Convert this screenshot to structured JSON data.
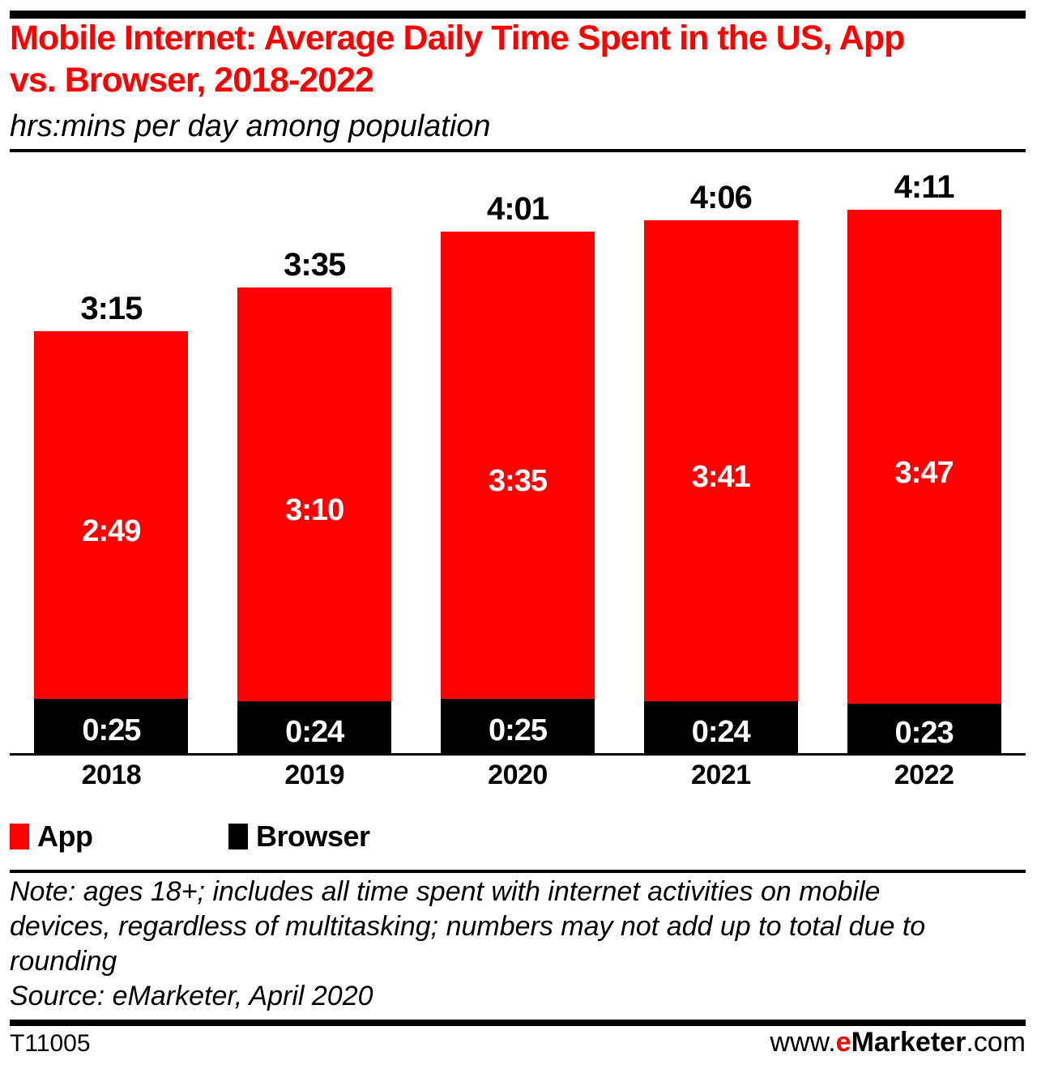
{
  "header": {
    "title": "Mobile Internet: Average Daily Time Spent in the US, App\nvs. Browser, 2018-2022",
    "subtitle": "hrs:mins per day among population"
  },
  "chart_data": {
    "type": "bar",
    "stacked": true,
    "unit": "hrs:mins per day among population",
    "categories": [
      "2018",
      "2019",
      "2020",
      "2021",
      "2022"
    ],
    "series": [
      {
        "name": "App",
        "color": "#FF0000",
        "labels": [
          "2:49",
          "3:10",
          "3:35",
          "3:41",
          "3:47"
        ],
        "values_minutes": [
          169,
          190,
          215,
          221,
          227
        ]
      },
      {
        "name": "Browser",
        "color": "#000000",
        "labels": [
          "0:25",
          "0:24",
          "0:25",
          "0:24",
          "0:23"
        ],
        "values_minutes": [
          25,
          24,
          25,
          24,
          23
        ]
      }
    ],
    "totals": {
      "labels": [
        "3:15",
        "3:35",
        "4:01",
        "4:06",
        "4:11"
      ],
      "minutes": [
        195,
        215,
        241,
        246,
        251
      ]
    },
    "ylim_minutes": [
      0,
      251
    ],
    "grid": false,
    "legend_position": "bottom"
  },
  "legend": [
    {
      "label": "App",
      "color": "#FF0000"
    },
    {
      "label": "Browser",
      "color": "#000000"
    }
  ],
  "note": "Note: ages 18+; includes all time spent with internet activities on mobile\ndevices, regardless of multitasking; numbers may not add up to total due to\nrounding",
  "source": "Source: eMarketer, April 2020",
  "footer": {
    "chart_id": "T11005",
    "website": {
      "prefix": "www.",
      "e": "e",
      "brand": "Marketer",
      "suffix": ".com"
    }
  },
  "colors": {
    "accent_red": "#FF0000",
    "black": "#000000"
  }
}
